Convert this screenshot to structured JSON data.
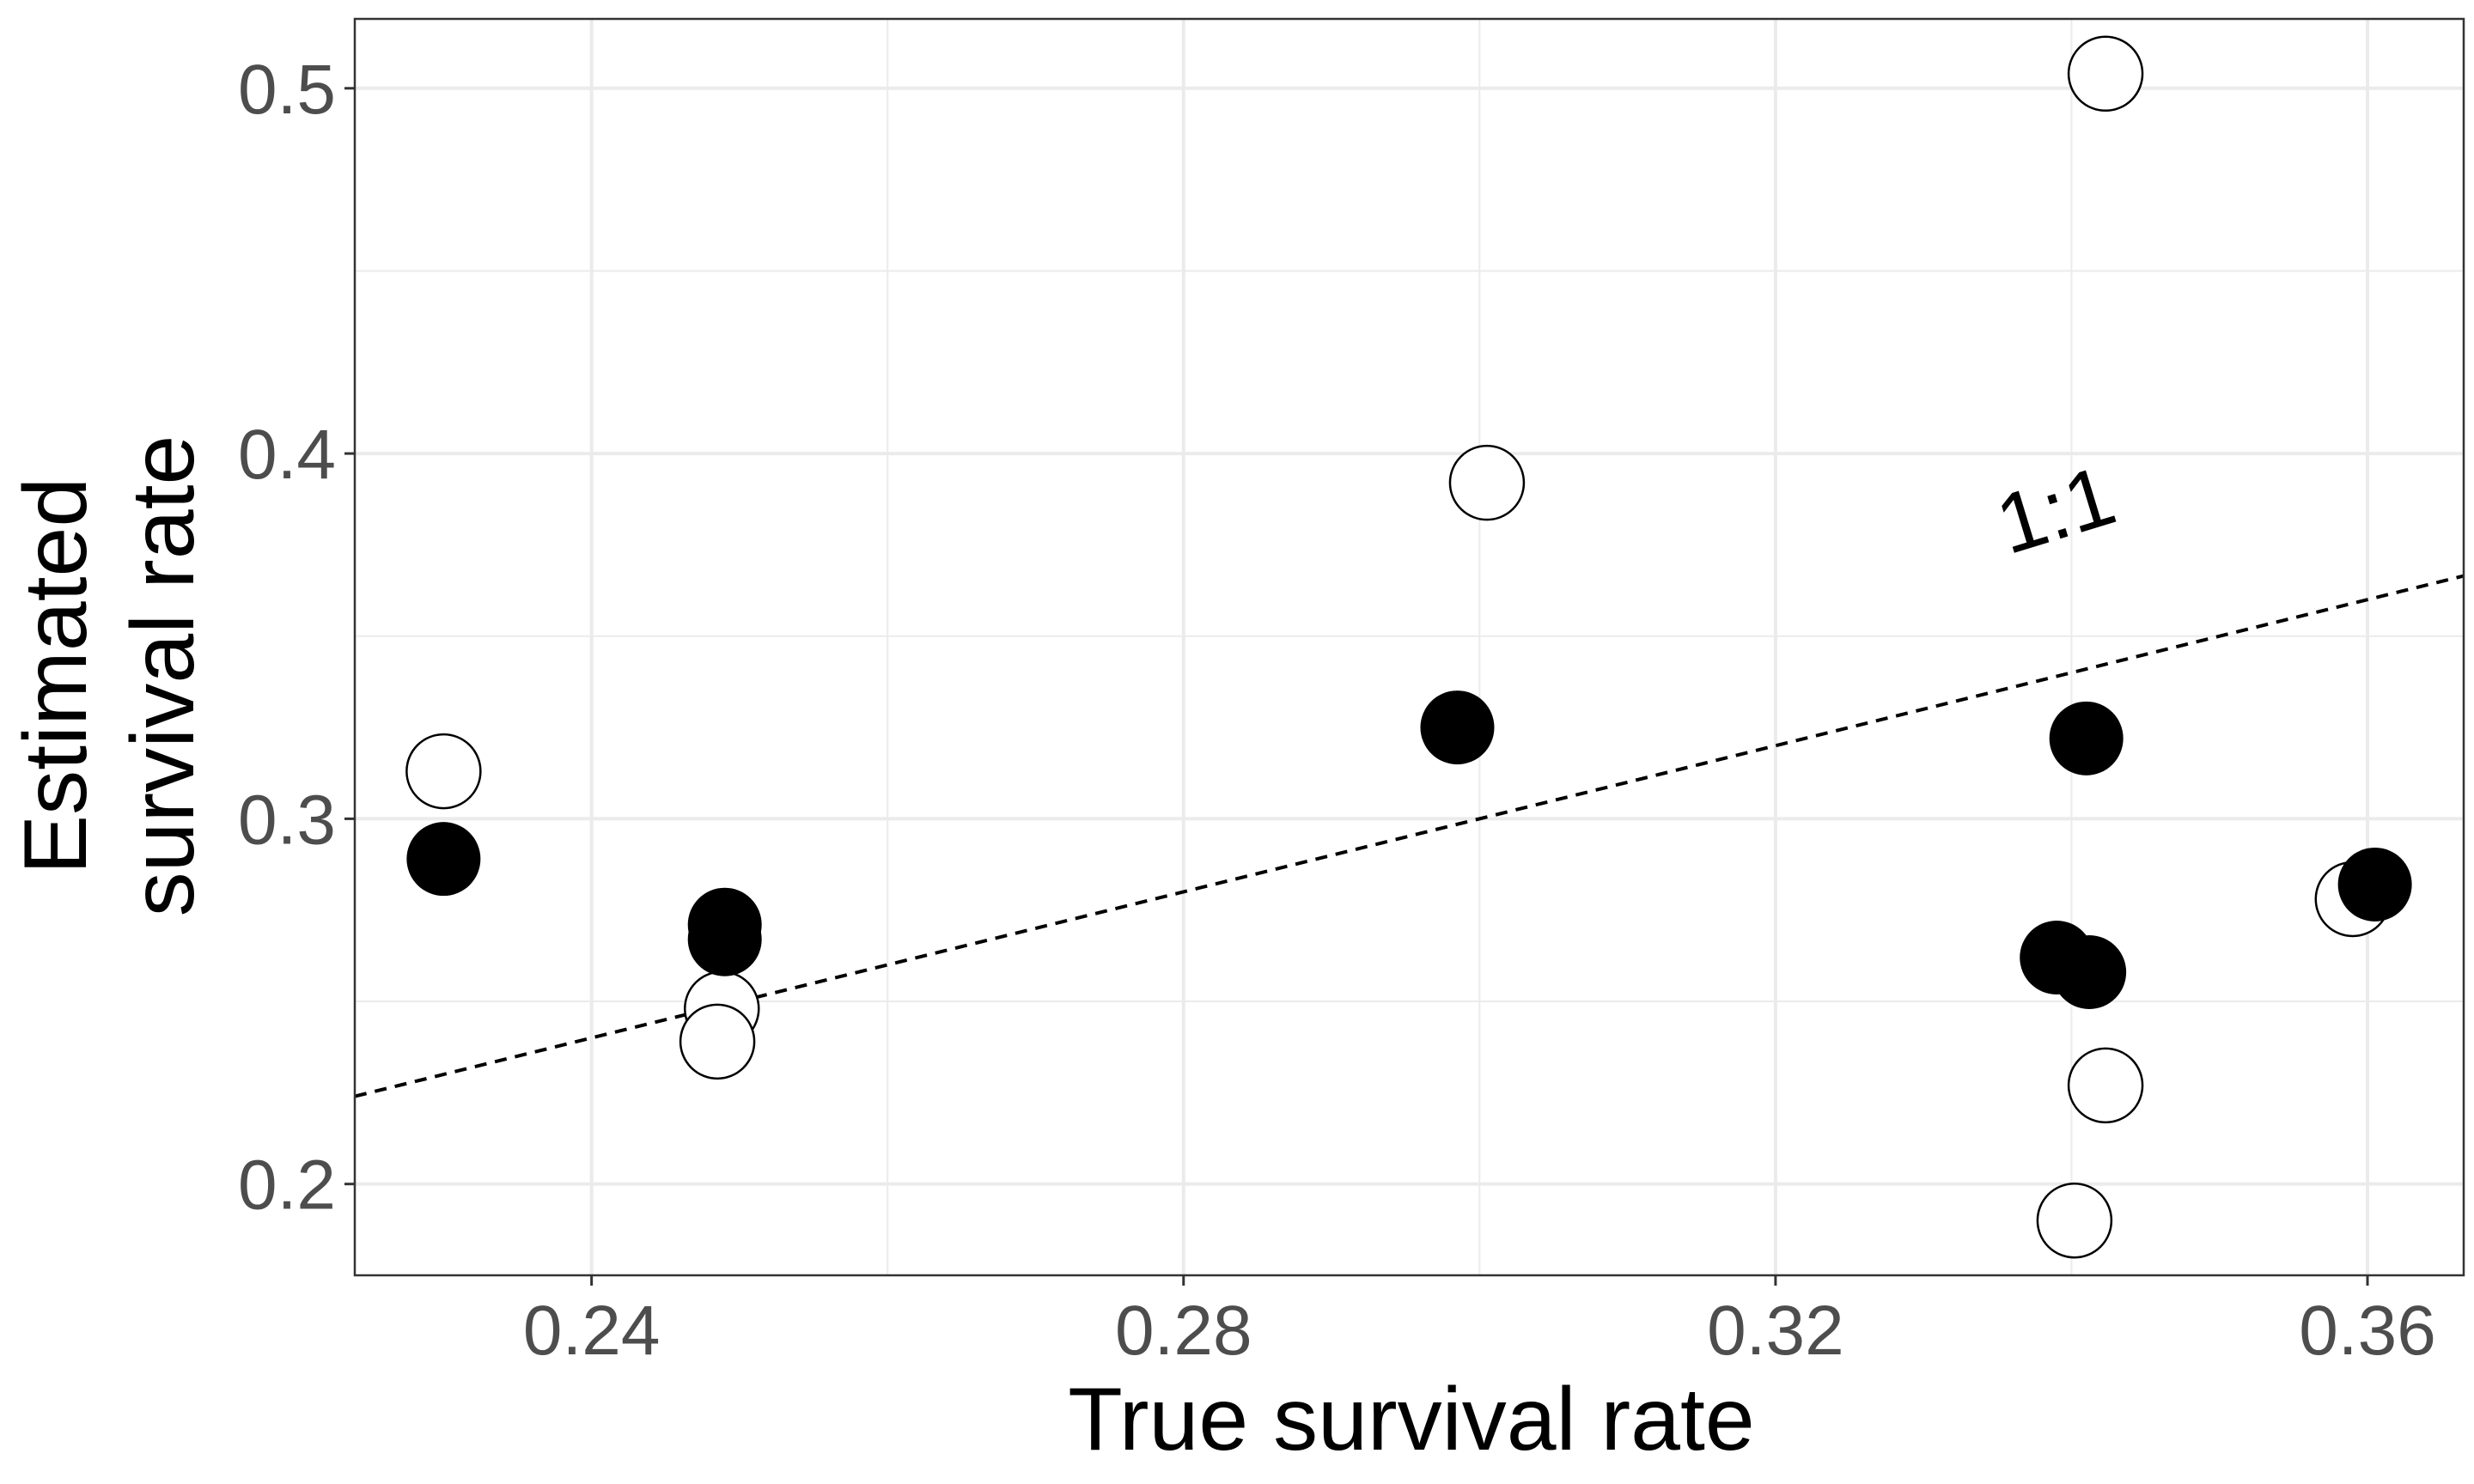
{
  "chart_data": {
    "type": "scatter",
    "xlabel": "True survival rate",
    "ylabel_lines": [
      "Estimated",
      "survival rate"
    ],
    "xlim": [
      0.224,
      0.3665
    ],
    "ylim": [
      0.175,
      0.519
    ],
    "x_ticks": [
      0.24,
      0.28,
      0.32,
      0.36
    ],
    "x_tick_labels": [
      "0.24",
      "0.28",
      "0.32",
      "0.36"
    ],
    "x_minor_ticks": [
      0.26,
      0.3,
      0.34
    ],
    "y_ticks": [
      0.2,
      0.3,
      0.4,
      0.5
    ],
    "y_tick_labels": [
      "0.2",
      "0.3",
      "0.4",
      "0.5"
    ],
    "y_minor_ticks": [
      0.25,
      0.35,
      0.45
    ],
    "grid": true,
    "legend": "none",
    "reference_line": {
      "slope": 1,
      "intercept": 0,
      "style": "dashed",
      "label": "1:1",
      "label_x": 0.3395,
      "label_y": 0.377,
      "label_angle_deg": -17
    },
    "series": [
      {
        "style": "open",
        "points": [
          {
            "x": 0.23,
            "y": 0.313
          },
          {
            "x": 0.2488,
            "y": 0.248
          },
          {
            "x": 0.2485,
            "y": 0.239
          },
          {
            "x": 0.3005,
            "y": 0.392
          },
          {
            "x": 0.3423,
            "y": 0.504
          },
          {
            "x": 0.3423,
            "y": 0.227
          },
          {
            "x": 0.3402,
            "y": 0.19
          },
          {
            "x": 0.359,
            "y": 0.278
          }
        ]
      },
      {
        "style": "filled",
        "points": [
          {
            "x": 0.23,
            "y": 0.289
          },
          {
            "x": 0.249,
            "y": 0.271
          },
          {
            "x": 0.249,
            "y": 0.267
          },
          {
            "x": 0.2985,
            "y": 0.325
          },
          {
            "x": 0.341,
            "y": 0.322
          },
          {
            "x": 0.339,
            "y": 0.262
          },
          {
            "x": 0.3412,
            "y": 0.258
          },
          {
            "x": 0.3605,
            "y": 0.282
          }
        ]
      }
    ],
    "colors": {
      "filled": "#000000",
      "open_fill": "#ffffff",
      "grid": "#ebebeb",
      "tick_text": "#4d4d4d",
      "panel_border": "#333333"
    }
  }
}
